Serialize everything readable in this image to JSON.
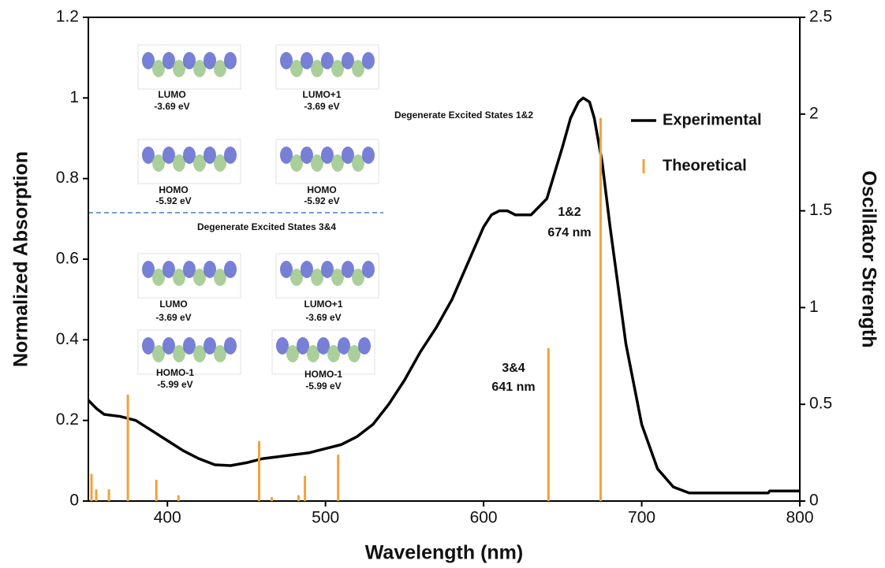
{
  "chart_data": {
    "type": "line",
    "xlabel": "Wavelength (nm)",
    "ylabel": "Normalized Absorption",
    "y2label": "Oscillator Strength",
    "xlim": [
      350,
      800
    ],
    "xticks": [
      400,
      500,
      600,
      700,
      800
    ],
    "ylim": [
      0,
      1.2
    ],
    "yticks": [
      0,
      0.2,
      0.4,
      0.6,
      0.8,
      1,
      1.2
    ],
    "y2lim": [
      0,
      2.5
    ],
    "y2ticks": [
      0,
      0.5,
      1,
      1.5,
      2,
      2.5
    ],
    "legend": "upper right",
    "series": [
      {
        "name": "Experimental",
        "type": "line",
        "color": "#000000",
        "x": [
          350,
          355,
          360,
          370,
          380,
          390,
          400,
          410,
          420,
          430,
          440,
          450,
          460,
          470,
          480,
          490,
          500,
          510,
          520,
          530,
          540,
          550,
          560,
          570,
          580,
          590,
          600,
          605,
          610,
          615,
          620,
          630,
          640,
          650,
          655,
          660,
          663,
          667,
          670,
          675,
          680,
          690,
          700,
          710,
          720,
          730,
          750,
          780,
          781,
          800
        ],
        "values": [
          0.25,
          0.23,
          0.215,
          0.21,
          0.2,
          0.175,
          0.15,
          0.125,
          0.105,
          0.09,
          0.088,
          0.095,
          0.105,
          0.11,
          0.115,
          0.12,
          0.13,
          0.14,
          0.16,
          0.19,
          0.24,
          0.3,
          0.37,
          0.43,
          0.5,
          0.59,
          0.68,
          0.71,
          0.72,
          0.72,
          0.71,
          0.71,
          0.75,
          0.88,
          0.95,
          0.99,
          1.0,
          0.99,
          0.95,
          0.84,
          0.68,
          0.39,
          0.19,
          0.08,
          0.035,
          0.02,
          0.02,
          0.02,
          0.025,
          0.025
        ]
      },
      {
        "name": "Theoretical",
        "type": "bar",
        "axis": "y2",
        "color": "#f0a23c",
        "x": [
          352,
          355,
          363,
          375,
          393,
          407,
          458,
          466,
          483,
          487,
          508,
          641,
          674
        ],
        "values": [
          0.14,
          0.06,
          0.06,
          0.55,
          0.11,
          0.03,
          0.31,
          0.02,
          0.03,
          0.13,
          0.24,
          0.79,
          1.98
        ]
      }
    ],
    "annotations": [
      "LUMO",
      "-3.69 eV",
      "LUMO+1",
      "-3.69 eV",
      "Degenerate Excited States 1&2",
      "HOMO",
      "-5.92 eV",
      "HOMO",
      "-5.92 eV",
      "Degenerate Excited States 3&4",
      "LUMO",
      "-3.69 eV",
      "LUMO+1",
      "-3.69 eV",
      "HOMO-1",
      "-5.99 eV",
      "HOMO-1",
      "-5.99 eV",
      "1&2",
      "674 nm",
      "3&4",
      "641 nm"
    ]
  }
}
